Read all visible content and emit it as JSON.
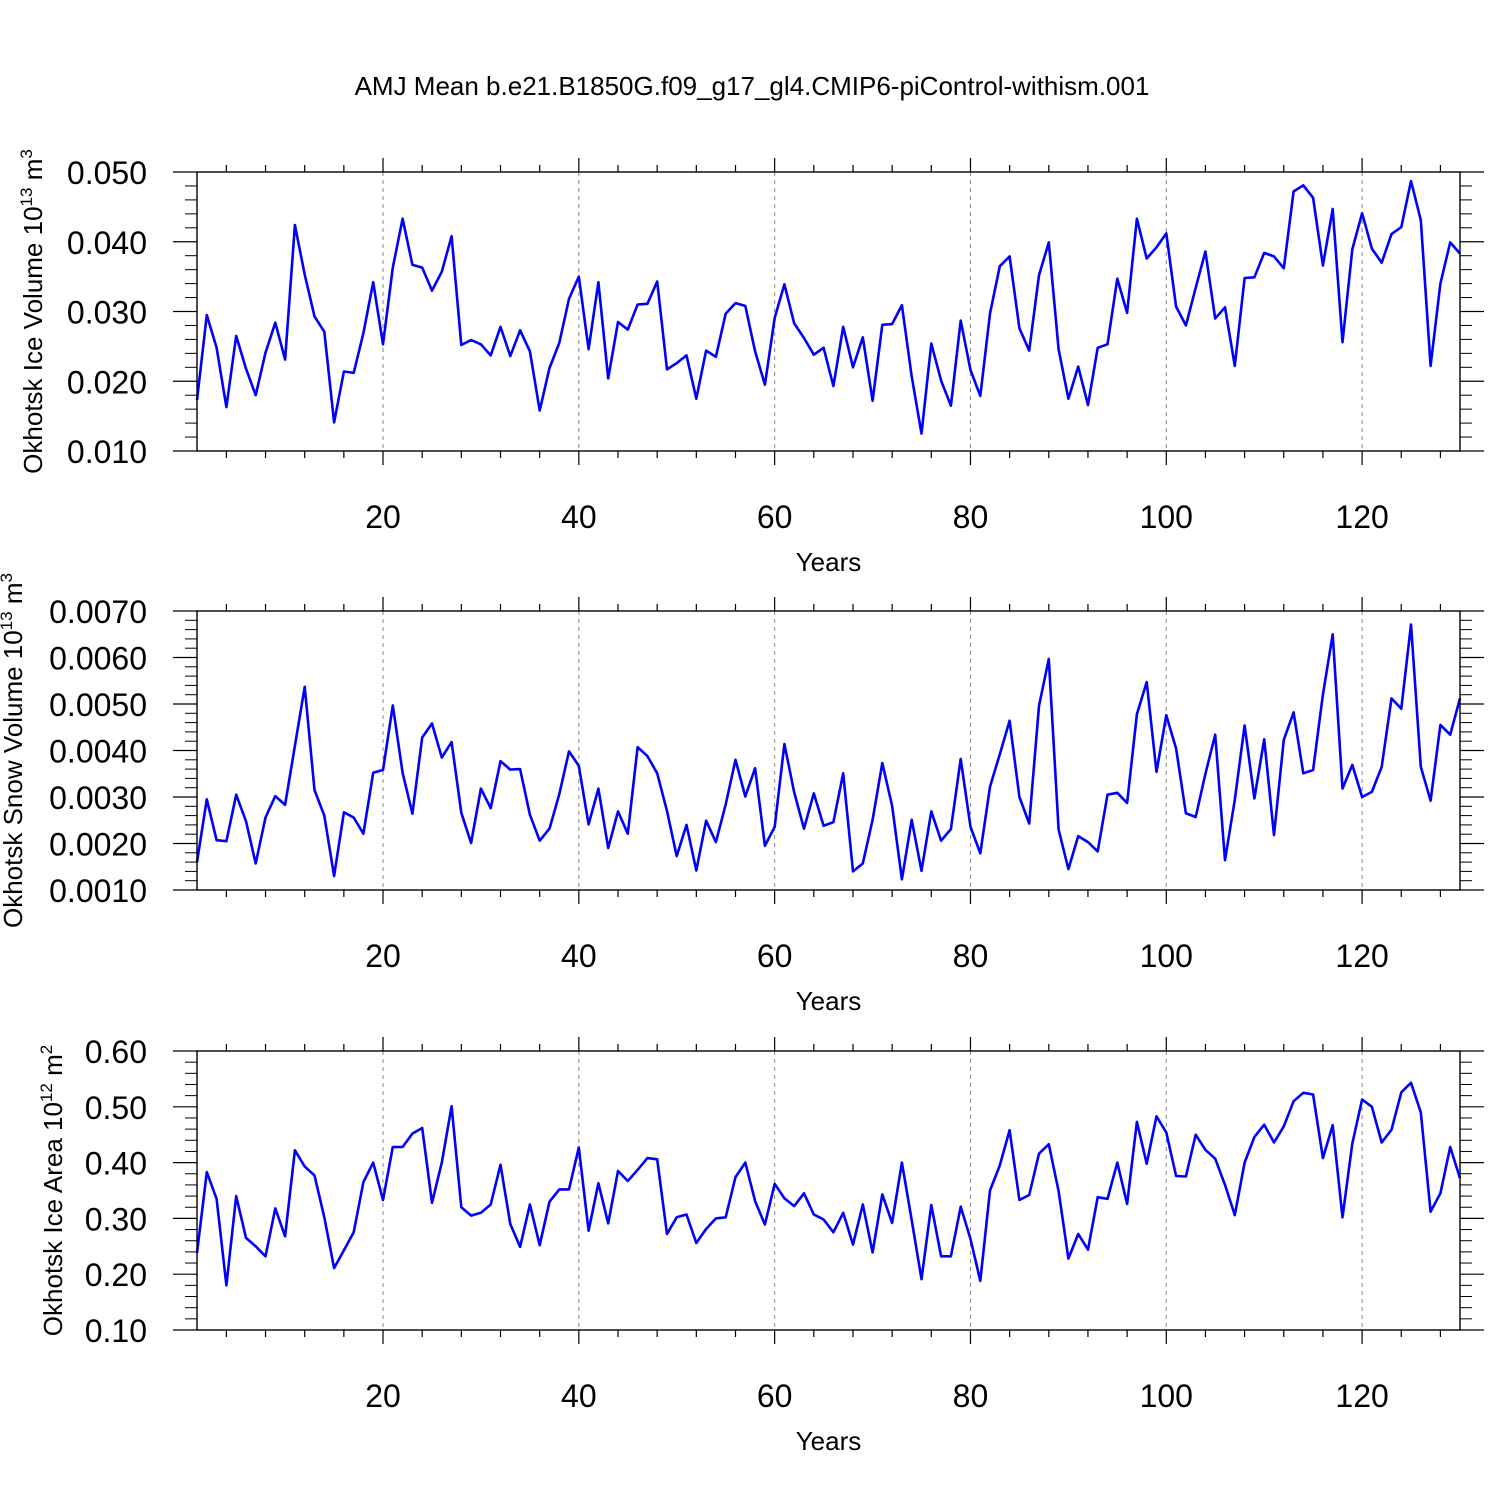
{
  "figure": {
    "title": "AMJ Mean b.e21.B1850G.f09_g17_gl4.CMIP6-piControl-withism.001",
    "line_color": "#0000ff"
  },
  "chart_data": [
    {
      "type": "line",
      "ylabel_main": "Okhotsk Ice Volume 10",
      "ylabel_exp": "13",
      "ylabel_unit": " m",
      "ylabel_unit_exp": "3",
      "xlabel": "Years",
      "xlim": [
        1,
        130
      ],
      "ylim": [
        0.01,
        0.05
      ],
      "yticks": [
        "0.010",
        "0.020",
        "0.030",
        "0.040",
        "0.050"
      ],
      "xticks": [
        "20",
        "40",
        "60",
        "80",
        "100",
        "120"
      ],
      "grid": "vertical dashed at x ticks",
      "x_start": 1,
      "values": [
        0.0173,
        0.0295,
        0.0248,
        0.0163,
        0.0265,
        0.0218,
        0.018,
        0.0241,
        0.0284,
        0.0231,
        0.0424,
        0.0353,
        0.0293,
        0.0271,
        0.0141,
        0.0214,
        0.0212,
        0.0269,
        0.0342,
        0.0253,
        0.0363,
        0.0433,
        0.0367,
        0.0363,
        0.033,
        0.0357,
        0.0408,
        0.0252,
        0.0259,
        0.0253,
        0.0237,
        0.0278,
        0.0236,
        0.0273,
        0.0243,
        0.0158,
        0.0219,
        0.0255,
        0.0318,
        0.035,
        0.0246,
        0.0342,
        0.0204,
        0.0285,
        0.0274,
        0.031,
        0.0311,
        0.0343,
        0.0217,
        0.0226,
        0.0237,
        0.0175,
        0.0244,
        0.0235,
        0.0297,
        0.0312,
        0.0308,
        0.0243,
        0.0195,
        0.0291,
        0.0339,
        0.0283,
        0.0262,
        0.0238,
        0.0248,
        0.0193,
        0.0278,
        0.022,
        0.0263,
        0.0172,
        0.0281,
        0.0282,
        0.0309,
        0.0207,
        0.0125,
        0.0254,
        0.0201,
        0.0165,
        0.0287,
        0.0216,
        0.0179,
        0.0297,
        0.0365,
        0.0379,
        0.0276,
        0.0244,
        0.0352,
        0.0399,
        0.0246,
        0.0175,
        0.0221,
        0.0166,
        0.0248,
        0.0253,
        0.0347,
        0.0298,
        0.0433,
        0.0376,
        0.0392,
        0.0412,
        0.0307,
        0.028,
        0.0334,
        0.0386,
        0.029,
        0.0306,
        0.0222,
        0.0348,
        0.0349,
        0.0384,
        0.0379,
        0.0362,
        0.0472,
        0.0481,
        0.0463,
        0.0366,
        0.0447,
        0.0256,
        0.0389,
        0.0441,
        0.039,
        0.037,
        0.0411,
        0.0421,
        0.0487,
        0.0431,
        0.0222,
        0.034,
        0.0399,
        0.0383
      ]
    },
    {
      "type": "line",
      "ylabel_main": "Okhotsk Snow Volume 10",
      "ylabel_exp": "13",
      "ylabel_unit": " m",
      "ylabel_unit_exp": "3",
      "xlabel": "Years",
      "xlim": [
        1,
        130
      ],
      "ylim": [
        0.001,
        0.007
      ],
      "yticks": [
        "0.0010",
        "0.0020",
        "0.0030",
        "0.0040",
        "0.0050",
        "0.0060",
        "0.0070"
      ],
      "xticks": [
        "20",
        "40",
        "60",
        "80",
        "100",
        "120"
      ],
      "grid": "vertical dashed at x ticks",
      "x_start": 1,
      "values": [
        0.0016,
        0.00295,
        0.00207,
        0.00205,
        0.00305,
        0.00248,
        0.00157,
        0.00256,
        0.00302,
        0.00283,
        0.0041,
        0.00537,
        0.00315,
        0.0026,
        0.0013,
        0.00267,
        0.00256,
        0.00221,
        0.00352,
        0.00358,
        0.00497,
        0.00352,
        0.00264,
        0.00428,
        0.00458,
        0.00385,
        0.00418,
        0.00266,
        0.00201,
        0.00318,
        0.00276,
        0.00377,
        0.00359,
        0.0036,
        0.00262,
        0.00206,
        0.00232,
        0.00306,
        0.00398,
        0.00367,
        0.00241,
        0.00318,
        0.0019,
        0.00269,
        0.00221,
        0.00407,
        0.00388,
        0.00351,
        0.0027,
        0.00173,
        0.0024,
        0.00142,
        0.00249,
        0.00203,
        0.00284,
        0.0038,
        0.00301,
        0.00362,
        0.00195,
        0.00236,
        0.00414,
        0.0031,
        0.00232,
        0.00308,
        0.00238,
        0.00246,
        0.00351,
        0.0014,
        0.00157,
        0.00251,
        0.00373,
        0.00281,
        0.00123,
        0.00251,
        0.00141,
        0.00269,
        0.00206,
        0.00231,
        0.00382,
        0.00236,
        0.00179,
        0.00322,
        0.00392,
        0.00464,
        0.003,
        0.00243,
        0.00496,
        0.00597,
        0.0023,
        0.00145,
        0.00216,
        0.00203,
        0.00183,
        0.00305,
        0.00309,
        0.00287,
        0.00478,
        0.00547,
        0.00354,
        0.00476,
        0.00404,
        0.00265,
        0.00257,
        0.0035,
        0.00434,
        0.00164,
        0.00294,
        0.00454,
        0.00297,
        0.00424,
        0.00218,
        0.00423,
        0.00482,
        0.00351,
        0.00358,
        0.0052,
        0.0065,
        0.00318,
        0.00369,
        0.003,
        0.00311,
        0.00365,
        0.00512,
        0.0049,
        0.00671,
        0.00365,
        0.00292,
        0.00455,
        0.00434,
        0.00512
      ]
    },
    {
      "type": "line",
      "ylabel_main": "Okhotsk Ice Area 10",
      "ylabel_exp": "12",
      "ylabel_unit": " m",
      "ylabel_unit_exp": "2",
      "xlabel": "Years",
      "xlim": [
        1,
        130
      ],
      "ylim": [
        0.1,
        0.6
      ],
      "yticks": [
        "0.10",
        "0.20",
        "0.30",
        "0.40",
        "0.50",
        "0.60"
      ],
      "xticks": [
        "20",
        "40",
        "60",
        "80",
        "100",
        "120"
      ],
      "grid": "vertical dashed at x ticks",
      "x_start": 1,
      "values": [
        0.238,
        0.383,
        0.335,
        0.18,
        0.34,
        0.265,
        0.25,
        0.232,
        0.318,
        0.268,
        0.422,
        0.393,
        0.377,
        0.302,
        0.211,
        0.243,
        0.275,
        0.365,
        0.4,
        0.333,
        0.428,
        0.428,
        0.452,
        0.462,
        0.328,
        0.4,
        0.501,
        0.32,
        0.305,
        0.31,
        0.325,
        0.396,
        0.29,
        0.249,
        0.325,
        0.252,
        0.33,
        0.352,
        0.352,
        0.427,
        0.278,
        0.363,
        0.291,
        0.385,
        0.367,
        0.387,
        0.408,
        0.406,
        0.272,
        0.302,
        0.307,
        0.256,
        0.281,
        0.3,
        0.302,
        0.374,
        0.4,
        0.331,
        0.289,
        0.362,
        0.336,
        0.322,
        0.345,
        0.307,
        0.298,
        0.275,
        0.31,
        0.253,
        0.325,
        0.239,
        0.343,
        0.292,
        0.4,
        0.297,
        0.191,
        0.324,
        0.232,
        0.232,
        0.321,
        0.263,
        0.188,
        0.35,
        0.395,
        0.458,
        0.333,
        0.342,
        0.416,
        0.433,
        0.349,
        0.228,
        0.272,
        0.244,
        0.338,
        0.335,
        0.4,
        0.326,
        0.473,
        0.398,
        0.483,
        0.454,
        0.376,
        0.375,
        0.45,
        0.423,
        0.407,
        0.36,
        0.306,
        0.4,
        0.446,
        0.468,
        0.436,
        0.465,
        0.51,
        0.525,
        0.522,
        0.408,
        0.467,
        0.302,
        0.434,
        0.513,
        0.5,
        0.436,
        0.459,
        0.526,
        0.543,
        0.49,
        0.312,
        0.345,
        0.428,
        0.372
      ]
    }
  ]
}
